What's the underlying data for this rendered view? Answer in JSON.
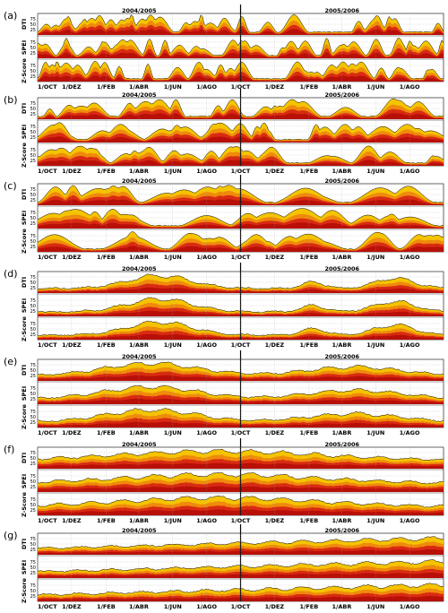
{
  "figure": {
    "season_labels": [
      "2004/2005",
      "2005/2006"
    ],
    "x_tick_labels": [
      "1/OCT",
      "1/DEZ",
      "1/FEB",
      "1/ABR",
      "1/JUN",
      "1/AGO",
      "1/OCT",
      "1/DEZ",
      "1/FEB",
      "1/ABR",
      "1/JUN",
      "1/AGO"
    ],
    "row_labels": [
      "DTI",
      "SPEI",
      "Z-Score"
    ],
    "y_tick_labels": [
      "75",
      "50",
      "25"
    ],
    "colors": {
      "band_outer": "#f5c400",
      "band_middle": "#ef8a0c",
      "band_inner": "#d92b12",
      "band_core": "#b81008",
      "grid": "#a8a8a8",
      "season_divider": "#000000"
    }
  },
  "chart_data": [
    {
      "type": "area",
      "panel_label": "(a)",
      "x_range": [
        "1/OCT 2004",
        "30/SEP 2006"
      ],
      "ylim": [
        0,
        100
      ],
      "y_ticks": [
        25,
        50,
        75
      ],
      "series": [
        "DTI",
        "SPEI",
        "Z-Score"
      ],
      "pattern": "very frequent short drought spikes",
      "typical_max": 80,
      "typical_base": 10
    },
    {
      "type": "area",
      "panel_label": "(b)",
      "x_range": [
        "1/OCT 2004",
        "30/SEP 2006"
      ],
      "ylim": [
        0,
        100
      ],
      "y_ticks": [
        25,
        50,
        75
      ],
      "series": [
        "DTI",
        "SPEI",
        "Z-Score"
      ],
      "pattern": "frequent drought episodes",
      "typical_max": 80,
      "typical_base": 12
    },
    {
      "type": "area",
      "panel_label": "(c)",
      "x_range": [
        "1/OCT 2004",
        "30/SEP 2006"
      ],
      "ylim": [
        0,
        100
      ],
      "y_ticks": [
        25,
        50,
        75
      ],
      "series": [
        "DTI",
        "SPEI",
        "Z-Score"
      ],
      "pattern": "medium-length drought episodes",
      "typical_max": 80,
      "typical_base": 15
    },
    {
      "type": "area",
      "panel_label": "(d)",
      "x_range": [
        "1/OCT 2004",
        "30/SEP 2006"
      ],
      "ylim": [
        0,
        100
      ],
      "y_ticks": [
        25,
        50,
        75
      ],
      "series": [
        "DTI",
        "SPEI",
        "Z-Score"
      ],
      "pattern": "broad drought plateaus",
      "typical_max": 75,
      "typical_base": 15
    },
    {
      "type": "area",
      "panel_label": "(e)",
      "x_range": [
        "1/OCT 2004",
        "30/SEP 2006"
      ],
      "ylim": [
        0,
        100
      ],
      "y_ticks": [
        25,
        50,
        75
      ],
      "series": [
        "DTI",
        "SPEI",
        "Z-Score"
      ],
      "pattern": "long drought hump through 2004/2005",
      "typical_max": 85,
      "typical_base": 20
    },
    {
      "type": "area",
      "panel_label": "(f)",
      "x_range": [
        "1/OCT 2004",
        "30/SEP 2006"
      ],
      "ylim": [
        0,
        100
      ],
      "y_ticks": [
        25,
        50,
        75
      ],
      "series": [
        "DTI",
        "SPEI",
        "Z-Score"
      ],
      "pattern": "persistent drought with slow decline",
      "typical_max": 90,
      "typical_base": 20
    },
    {
      "type": "area",
      "panel_label": "(g)",
      "x_range": [
        "1/OCT 2004",
        "30/SEP 2006"
      ],
      "ylim": [
        0,
        100
      ],
      "y_ticks": [
        25,
        50,
        75
      ],
      "series": [
        "DTI",
        "SPEI",
        "Z-Score"
      ],
      "pattern": "steadily increasing drought",
      "typical_max": 95,
      "typical_base": 20
    }
  ]
}
